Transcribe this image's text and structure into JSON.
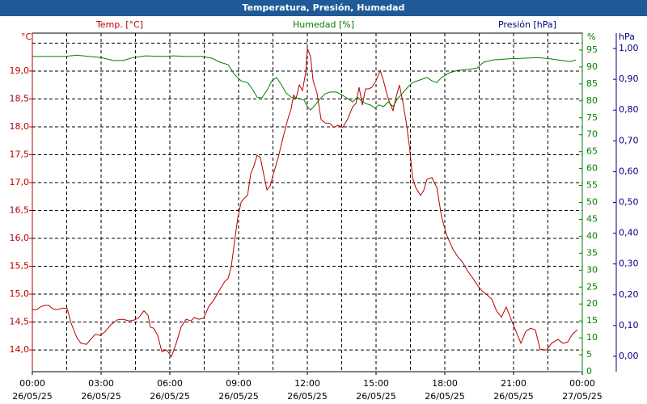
{
  "chart_data": {
    "type": "line",
    "title": "Temperatura, Presión, Humedad",
    "xlim": [
      0,
      24
    ],
    "xticks": [
      {
        "value": 0,
        "label": "00:00",
        "date": "26/05/25"
      },
      {
        "value": 1.5
      },
      {
        "value": 3,
        "label": "03:00",
        "date": "26/05/25"
      },
      {
        "value": 4.5
      },
      {
        "value": 6,
        "label": "06:00",
        "date": "26/05/25"
      },
      {
        "value": 7.5
      },
      {
        "value": 9,
        "label": "09:00",
        "date": "26/05/25"
      },
      {
        "value": 10.5
      },
      {
        "value": 12,
        "label": "12:00",
        "date": "26/05/25"
      },
      {
        "value": 13.5
      },
      {
        "value": 15,
        "label": "15:00",
        "date": "26/05/25"
      },
      {
        "value": 16.5
      },
      {
        "value": 18,
        "label": "18:00",
        "date": "26/05/25"
      },
      {
        "value": 19.5
      },
      {
        "value": 21,
        "label": "21:00",
        "date": "26/05/25"
      },
      {
        "value": 22.5
      },
      {
        "value": 24,
        "label": "00:00",
        "date": "27/05/25"
      }
    ],
    "y_unit": "°C",
    "ylim": [
      13.61,
      19.68
    ],
    "yticks": [
      {
        "value": 14,
        "label": "14,0"
      },
      {
        "value": 14.5,
        "label": "14,5"
      },
      {
        "value": 15,
        "label": "15,0"
      },
      {
        "value": 15.5,
        "label": "15,5"
      },
      {
        "value": 16,
        "label": "16,0"
      },
      {
        "value": 16.5,
        "label": "16,5"
      },
      {
        "value": 17,
        "label": "17,0"
      },
      {
        "value": 17.5,
        "label": "17,5"
      },
      {
        "value": 18,
        "label": "18,0"
      },
      {
        "value": 18.5,
        "label": "18,5"
      },
      {
        "value": 19,
        "label": "19,0"
      },
      {
        "value": 19.5
      }
    ],
    "y2_unit": "%",
    "y2lim": [
      0,
      100
    ],
    "y2ticks": [
      0,
      5,
      10,
      15,
      20,
      25,
      30,
      35,
      40,
      45,
      50,
      55,
      60,
      65,
      70,
      75,
      80,
      85,
      90,
      95
    ],
    "y3_unit": "hPa",
    "y3lim": [
      -0.05,
      1.05
    ],
    "y3ticks": [
      {
        "value": 0,
        "label": "0,00"
      },
      {
        "value": 0.1,
        "label": "0,10"
      },
      {
        "value": 0.2,
        "label": "0,20"
      },
      {
        "value": 0.3,
        "label": "0,30"
      },
      {
        "value": 0.4,
        "label": "0,40"
      },
      {
        "value": 0.5,
        "label": "0,50"
      },
      {
        "value": 0.6,
        "label": "0,60"
      },
      {
        "value": 0.7,
        "label": "0,70"
      },
      {
        "value": 0.8,
        "label": "0,80"
      },
      {
        "value": 0.9,
        "label": "0,90"
      },
      {
        "value": 1,
        "label": "1,00"
      }
    ],
    "grid": true,
    "series": [
      {
        "name": "Temp. [°C]",
        "color": "#b80000",
        "axis": "y",
        "x": [
          0,
          0.18,
          0.35,
          0.53,
          0.71,
          0.88,
          1.06,
          1.34,
          1.52,
          1.69,
          1.94,
          2.12,
          2.36,
          2.54,
          2.75,
          2.96,
          3.18,
          3.42,
          3.71,
          3.95,
          4.24,
          4.48,
          4.66,
          4.87,
          5.05,
          5.15,
          5.29,
          5.47,
          5.65,
          5.86,
          6.07,
          6.28,
          6.49,
          6.71,
          6.92,
          7.06,
          7.27,
          7.48,
          7.69,
          7.94,
          8.19,
          8.4,
          8.54,
          8.68,
          8.82,
          8.96,
          9.11,
          9.25,
          9.39,
          9.53,
          9.67,
          9.81,
          9.95,
          10.09,
          10.24,
          10.38,
          10.52,
          10.73,
          10.94,
          11.12,
          11.29,
          11.4,
          11.51,
          11.65,
          11.79,
          11.93,
          12,
          12.14,
          12.25,
          12.42,
          12.6,
          12.78,
          12.99,
          13.16,
          13.34,
          13.55,
          13.76,
          13.98,
          14.12,
          14.26,
          14.4,
          14.54,
          14.68,
          14.82,
          15,
          15.18,
          15.32,
          15.46,
          15.6,
          15.74,
          15.88,
          16.02,
          16.16,
          16.31,
          16.45,
          16.59,
          16.73,
          16.94,
          17.08,
          17.22,
          17.44,
          17.65,
          17.86,
          18.07,
          18.35,
          18.57,
          18.78,
          18.99,
          19.2,
          19.41,
          19.62,
          19.84,
          20.05,
          20.26,
          20.47,
          20.68,
          20.89,
          21.11,
          21.32,
          21.53,
          21.74,
          21.95,
          22.16,
          22.45,
          22.66,
          22.94,
          23.15,
          23.36,
          23.58,
          23.79
        ],
        "values": [
          14.72,
          14.72,
          14.77,
          14.8,
          14.8,
          14.74,
          14.72,
          14.75,
          14.74,
          14.48,
          14.22,
          14.12,
          14.1,
          14.19,
          14.28,
          14.26,
          14.33,
          14.45,
          14.54,
          14.55,
          14.52,
          14.54,
          14.59,
          14.7,
          14.62,
          14.41,
          14.39,
          14.26,
          13.97,
          14,
          13.88,
          14.12,
          14.41,
          14.55,
          14.52,
          14.58,
          14.55,
          14.57,
          14.77,
          14.91,
          15.09,
          15.23,
          15.28,
          15.49,
          15.93,
          16.36,
          16.65,
          16.72,
          16.77,
          17.16,
          17.3,
          17.49,
          17.45,
          17.16,
          16.87,
          16.94,
          17.16,
          17.45,
          17.81,
          18.1,
          18.32,
          18.57,
          18.51,
          18.75,
          18.65,
          18.97,
          19.41,
          19.26,
          18.83,
          18.61,
          18.13,
          18.07,
          18.06,
          17.99,
          18.03,
          17.99,
          18.14,
          18.36,
          18.42,
          18.71,
          18.39,
          18.68,
          18.68,
          18.71,
          18.83,
          19.01,
          18.83,
          18.61,
          18.42,
          18.29,
          18.54,
          18.75,
          18.46,
          18.1,
          17.67,
          17.09,
          16.91,
          16.77,
          16.86,
          17.06,
          17.09,
          16.91,
          16.39,
          16.07,
          15.81,
          15.67,
          15.57,
          15.42,
          15.3,
          15.17,
          15.06,
          14.99,
          14.91,
          14.7,
          14.59,
          14.77,
          14.55,
          14.33,
          14.12,
          14.33,
          14.39,
          14.36,
          14.01,
          14,
          14.12,
          14.19,
          14.12,
          14.14,
          14.29,
          14.36
        ]
      },
      {
        "name": "Humedad [%]",
        "color": "#008000",
        "axis": "y2",
        "x": [
          0,
          1.41,
          1.94,
          2.47,
          3,
          3.53,
          3.95,
          4.41,
          4.94,
          5.65,
          6.18,
          6.71,
          7.41,
          7.84,
          8.19,
          8.54,
          8.82,
          9.11,
          9.39,
          9.6,
          9.81,
          10.02,
          10.24,
          10.45,
          10.66,
          10.87,
          11.08,
          11.29,
          11.65,
          11.86,
          12,
          12.14,
          12.35,
          12.56,
          12.78,
          12.99,
          13.27,
          13.55,
          13.76,
          13.98,
          14.19,
          14.33,
          14.54,
          14.75,
          14.96,
          15.11,
          15.32,
          15.53,
          15.74,
          15.95,
          16.16,
          16.38,
          16.59,
          16.8,
          17.01,
          17.22,
          17.44,
          17.65,
          17.86,
          18.21,
          18.56,
          19.06,
          19.41,
          19.69,
          20.12,
          20.82,
          21.53,
          22.06,
          22.59,
          23.12,
          23.47,
          23.72
        ],
        "values": [
          93.1,
          93.1,
          93.5,
          93.1,
          92.8,
          91.9,
          91.9,
          92.8,
          93.3,
          93.1,
          93.3,
          93.1,
          93.1,
          92.6,
          91.4,
          90.7,
          87.8,
          85.9,
          85.4,
          83.5,
          81.1,
          80.9,
          83.1,
          85.9,
          86.9,
          84.7,
          82.3,
          81.1,
          80.7,
          80.2,
          78.3,
          77.3,
          78.8,
          80.7,
          82.1,
          82.6,
          82.6,
          81.6,
          80.7,
          79.7,
          81.1,
          80.2,
          79.2,
          78.8,
          77.8,
          78.8,
          78.3,
          79.7,
          78.3,
          80.7,
          82.3,
          84,
          85.4,
          85.9,
          86.4,
          86.9,
          85.9,
          85.4,
          86.9,
          88.3,
          89,
          89.3,
          89.7,
          91.4,
          92.1,
          92.4,
          92.6,
          92.8,
          92.4,
          91.9,
          91.6,
          92.1
        ]
      },
      {
        "name": "Presión [hPa]",
        "color": "#00007f",
        "axis": "y3",
        "x": [],
        "values": []
      }
    ]
  }
}
